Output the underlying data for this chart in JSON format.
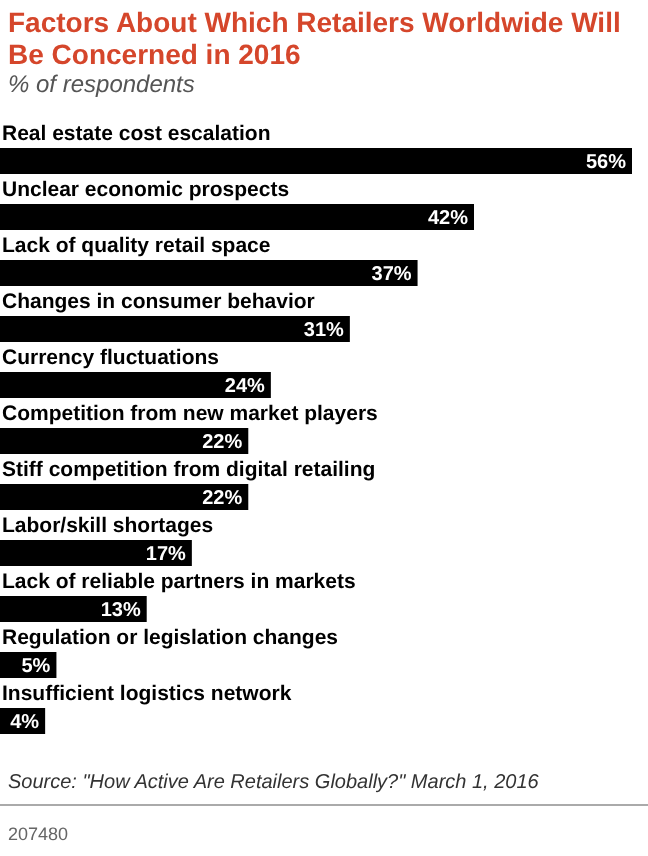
{
  "chart_data": {
    "type": "bar",
    "orientation": "horizontal",
    "title": "Factors About Which Retailers Worldwide Will Be Concerned in 2016",
    "subtitle": "% of respondents",
    "categories": [
      "Real estate cost escalation",
      "Unclear economic prospects",
      "Lack of quality retail space",
      "Changes in consumer behavior",
      "Currency fluctuations",
      "Competition from new market players",
      "Stiff competition from digital retailing",
      "Labor/skill shortages",
      "Lack of reliable partners in markets",
      "Regulation or legislation changes",
      "Insufficient logistics network"
    ],
    "values": [
      56,
      42,
      37,
      31,
      24,
      22,
      22,
      17,
      13,
      5,
      4
    ],
    "value_labels": [
      "56%",
      "42%",
      "37%",
      "31%",
      "24%",
      "22%",
      "22%",
      "17%",
      "13%",
      "5%",
      "4%"
    ],
    "color": "#000000",
    "annotations": [
      "Source: \"How Active Are Retailers Globally?\" March 1, 2016",
      "207480"
    ]
  }
}
